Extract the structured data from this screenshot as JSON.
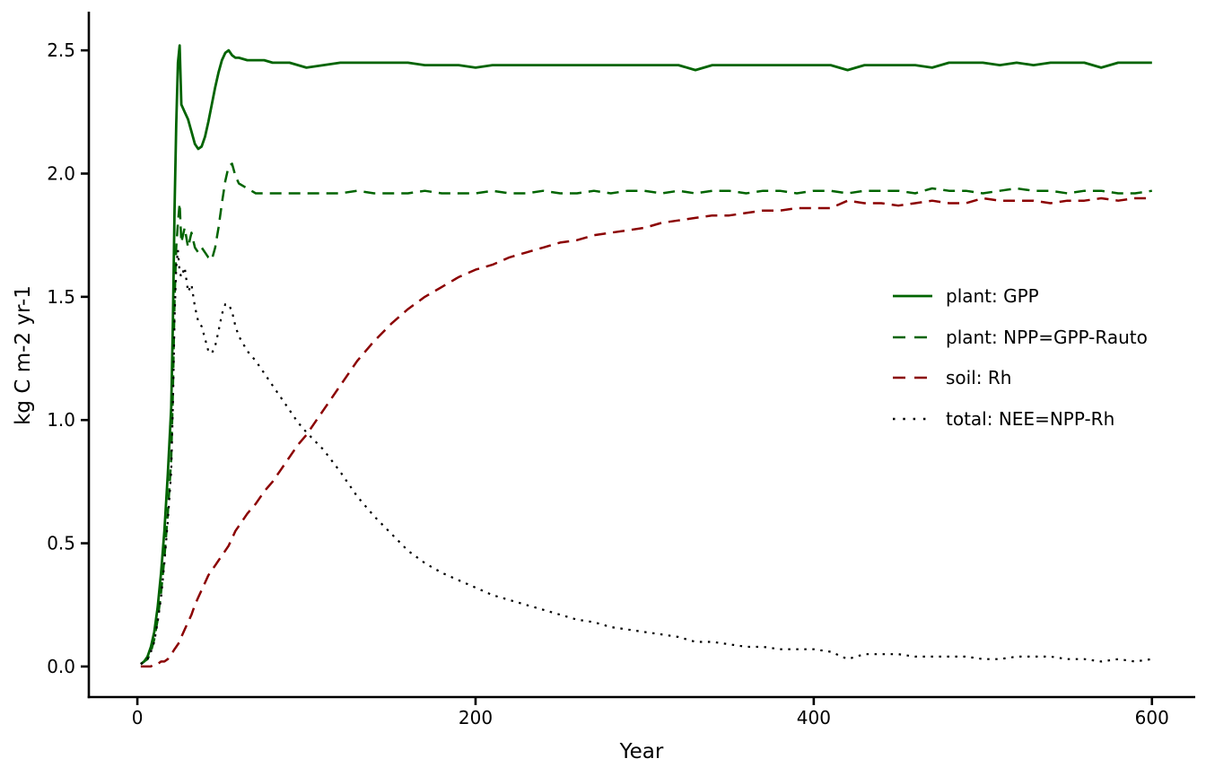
{
  "figure": {
    "background": "#ffffff",
    "axis_color": "#000000",
    "text_color": "#000000"
  },
  "chart_data": {
    "type": "line",
    "title": "",
    "xlabel": "Year",
    "ylabel": "kg C m-2 yr-1",
    "grid": false,
    "legend_position": "center-right",
    "xlim": [
      -28.7,
      625.6
    ],
    "ylim": [
      -0.124,
      2.657
    ],
    "x_ticks": [
      0,
      200,
      400,
      600
    ],
    "x_tick_labels": [
      "0",
      "200",
      "400",
      "600"
    ],
    "y_ticks": [
      0,
      0.5,
      1.0,
      1.5,
      2.0,
      2.5
    ],
    "y_tick_labels": [
      "0.0",
      "0.5",
      "1.0",
      "1.5",
      "2.0",
      "2.5"
    ],
    "x": [
      2,
      4,
      6,
      8,
      10,
      12,
      14,
      16,
      18,
      20,
      21,
      22,
      23,
      24,
      25,
      26,
      28,
      30,
      32,
      34,
      36,
      38,
      40,
      42,
      44,
      46,
      48,
      50,
      52,
      54,
      56,
      58,
      60,
      65,
      70,
      75,
      80,
      85,
      90,
      95,
      100,
      110,
      120,
      130,
      140,
      150,
      160,
      170,
      180,
      190,
      200,
      210,
      220,
      230,
      240,
      250,
      260,
      270,
      280,
      290,
      300,
      310,
      320,
      330,
      340,
      350,
      360,
      370,
      380,
      390,
      400,
      410,
      420,
      430,
      440,
      450,
      460,
      470,
      480,
      490,
      500,
      510,
      520,
      530,
      540,
      550,
      560,
      570,
      580,
      590,
      600
    ],
    "series": [
      {
        "key": "gpp",
        "label": "plant: GPP",
        "color": "#006400",
        "style": "solid",
        "values": [
          0.01,
          0.02,
          0.04,
          0.08,
          0.14,
          0.24,
          0.38,
          0.55,
          0.78,
          1.05,
          1.4,
          1.85,
          2.2,
          2.45,
          2.52,
          2.28,
          2.25,
          2.22,
          2.17,
          2.12,
          2.1,
          2.11,
          2.15,
          2.21,
          2.28,
          2.35,
          2.41,
          2.46,
          2.49,
          2.5,
          2.48,
          2.47,
          2.47,
          2.46,
          2.46,
          2.46,
          2.45,
          2.45,
          2.45,
          2.44,
          2.43,
          2.44,
          2.45,
          2.45,
          2.45,
          2.45,
          2.45,
          2.44,
          2.44,
          2.44,
          2.43,
          2.44,
          2.44,
          2.44,
          2.44,
          2.44,
          2.44,
          2.44,
          2.44,
          2.44,
          2.44,
          2.44,
          2.44,
          2.42,
          2.44,
          2.44,
          2.44,
          2.44,
          2.44,
          2.44,
          2.44,
          2.44,
          2.42,
          2.44,
          2.44,
          2.44,
          2.44,
          2.43,
          2.45,
          2.45,
          2.45,
          2.44,
          2.45,
          2.44,
          2.45,
          2.45,
          2.45,
          2.43,
          2.45,
          2.45,
          2.45
        ]
      },
      {
        "key": "npp",
        "label": "plant: NPP=GPP-Rauto",
        "color": "#006400",
        "style": "dashed",
        "values": [
          0.01,
          0.02,
          0.03,
          0.06,
          0.11,
          0.19,
          0.3,
          0.44,
          0.62,
          0.84,
          1.12,
          1.48,
          1.7,
          1.8,
          1.88,
          1.72,
          1.78,
          1.7,
          1.76,
          1.7,
          1.68,
          1.7,
          1.68,
          1.66,
          1.65,
          1.7,
          1.78,
          1.88,
          1.97,
          2.03,
          2.04,
          1.99,
          1.96,
          1.94,
          1.92,
          1.92,
          1.92,
          1.92,
          1.92,
          1.92,
          1.92,
          1.92,
          1.92,
          1.93,
          1.92,
          1.92,
          1.92,
          1.93,
          1.92,
          1.92,
          1.92,
          1.93,
          1.92,
          1.92,
          1.93,
          1.92,
          1.92,
          1.93,
          1.92,
          1.93,
          1.93,
          1.92,
          1.93,
          1.92,
          1.93,
          1.93,
          1.92,
          1.93,
          1.93,
          1.92,
          1.93,
          1.93,
          1.92,
          1.93,
          1.93,
          1.93,
          1.92,
          1.94,
          1.93,
          1.93,
          1.92,
          1.93,
          1.94,
          1.93,
          1.93,
          1.92,
          1.93,
          1.93,
          1.92,
          1.92,
          1.93
        ]
      },
      {
        "key": "rh",
        "label": "soil: Rh",
        "color": "#8b0000",
        "style": "dashed",
        "values": [
          0.0,
          0.0,
          0.0,
          0.0,
          0.01,
          0.01,
          0.02,
          0.02,
          0.03,
          0.05,
          0.06,
          0.07,
          0.08,
          0.09,
          0.1,
          0.12,
          0.15,
          0.18,
          0.21,
          0.25,
          0.28,
          0.31,
          0.34,
          0.37,
          0.39,
          0.41,
          0.43,
          0.45,
          0.47,
          0.49,
          0.52,
          0.55,
          0.57,
          0.62,
          0.66,
          0.71,
          0.75,
          0.8,
          0.85,
          0.9,
          0.94,
          1.04,
          1.14,
          1.24,
          1.32,
          1.39,
          1.45,
          1.5,
          1.54,
          1.58,
          1.61,
          1.63,
          1.66,
          1.68,
          1.7,
          1.72,
          1.73,
          1.75,
          1.76,
          1.77,
          1.78,
          1.8,
          1.81,
          1.82,
          1.83,
          1.83,
          1.84,
          1.85,
          1.85,
          1.86,
          1.86,
          1.86,
          1.89,
          1.88,
          1.88,
          1.87,
          1.88,
          1.89,
          1.88,
          1.88,
          1.9,
          1.89,
          1.89,
          1.89,
          1.88,
          1.89,
          1.89,
          1.9,
          1.89,
          1.9,
          1.9
        ]
      },
      {
        "key": "nee",
        "label": "total: NEE=NPP-Rh",
        "color": "#000000",
        "style": "dotted",
        "values": [
          0.01,
          0.02,
          0.03,
          0.06,
          0.1,
          0.18,
          0.28,
          0.42,
          0.59,
          0.79,
          1.06,
          1.41,
          1.62,
          1.69,
          1.6,
          1.58,
          1.62,
          1.52,
          1.55,
          1.46,
          1.4,
          1.38,
          1.33,
          1.28,
          1.27,
          1.3,
          1.36,
          1.43,
          1.47,
          1.47,
          1.44,
          1.38,
          1.34,
          1.28,
          1.24,
          1.19,
          1.14,
          1.09,
          1.04,
          0.99,
          0.95,
          0.88,
          0.79,
          0.69,
          0.61,
          0.54,
          0.47,
          0.42,
          0.38,
          0.35,
          0.32,
          0.29,
          0.27,
          0.25,
          0.23,
          0.21,
          0.19,
          0.18,
          0.16,
          0.15,
          0.14,
          0.13,
          0.12,
          0.1,
          0.1,
          0.09,
          0.08,
          0.08,
          0.07,
          0.07,
          0.07,
          0.06,
          0.03,
          0.05,
          0.05,
          0.05,
          0.04,
          0.04,
          0.04,
          0.04,
          0.03,
          0.03,
          0.04,
          0.04,
          0.04,
          0.03,
          0.03,
          0.02,
          0.03,
          0.02,
          0.03
        ]
      }
    ]
  }
}
